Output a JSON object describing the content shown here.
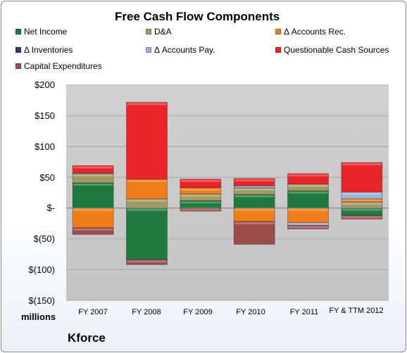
{
  "chart_data": {
    "type": "bar",
    "stacked": true,
    "title": "Free Cash Flow Components",
    "categories": [
      "FY 2007",
      "FY 2008",
      "FY 2009",
      "FY 2010",
      "FY 2011",
      "FY & TTM 2012"
    ],
    "series": [
      {
        "name": "Net Income",
        "color": "#1e7a3e",
        "values": [
          41,
          -84,
          12,
          22,
          28,
          -12
        ]
      },
      {
        "name": "D&A",
        "color": "#a09a64",
        "values": [
          15,
          15,
          11,
          11,
          11,
          10
        ]
      },
      {
        "name": "Δ Accounts Rec.",
        "color": "#ee7d1a",
        "values": [
          -32,
          32,
          10,
          -22,
          -24,
          5
        ]
      },
      {
        "name": "Δ Inventories",
        "color": "#2a3f62",
        "values": [
          0,
          0,
          0,
          0,
          0,
          0
        ]
      },
      {
        "name": "Δ Accounts Pay.",
        "color": "#9db3d8",
        "values": [
          1,
          0,
          0,
          3,
          -4,
          11
        ]
      },
      {
        "name": "Questionable Cash Sources",
        "color": "#e8262a",
        "values": [
          12,
          125,
          14,
          12,
          17,
          48
        ]
      },
      {
        "name": "Capital Expenditures",
        "color": "#9c4b4b",
        "values": [
          -11,
          -8,
          -5,
          -37,
          -6,
          -6
        ]
      }
    ],
    "yticks": [
      "$200",
      "$150",
      "$100",
      "$50",
      "$-",
      "$(50)",
      "$(100)",
      "$(150)"
    ],
    "ylim": [
      -150,
      200
    ],
    "ylabel": "millions",
    "grid": true,
    "legend": "top"
  },
  "footer": {
    "company": "Kforce"
  }
}
